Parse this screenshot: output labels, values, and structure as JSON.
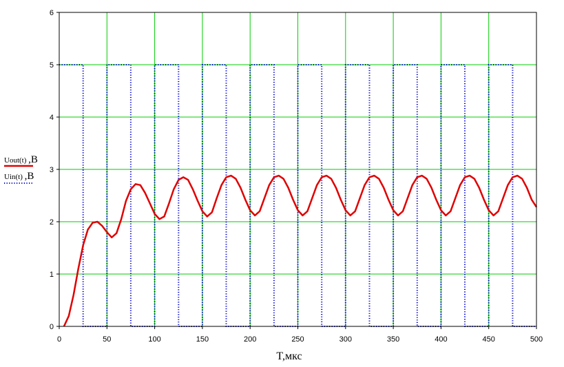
{
  "chart_data": {
    "type": "line",
    "xlabel": "T,мкс",
    "xlim": [
      0,
      500
    ],
    "ylim": [
      0,
      6
    ],
    "x_ticks": [
      0,
      50,
      100,
      150,
      200,
      250,
      300,
      350,
      400,
      450,
      500
    ],
    "x_tick_labels": [
      "0",
      "50",
      "100",
      "150",
      "200",
      "250",
      "300",
      "350",
      "400",
      "450",
      "500"
    ],
    "y_ticks": [
      0,
      1,
      2,
      3,
      4,
      5,
      6
    ],
    "y_tick_labels": [
      "0",
      "1",
      "2",
      "3",
      "4",
      "5",
      "6"
    ],
    "grid": true,
    "legend_position": "left",
    "series": [
      {
        "name": "Uout(t)",
        "label": "Uout(t)",
        "unit": ",B",
        "color": "#e00000",
        "style": "solid",
        "x": [
          5,
          10,
          15,
          20,
          25,
          30,
          35,
          40,
          45,
          50,
          55,
          60,
          65,
          70,
          75,
          80,
          85,
          90,
          95,
          100,
          105,
          110,
          115,
          120,
          125,
          130,
          135,
          140,
          145,
          150,
          155,
          160,
          165,
          170,
          175,
          180,
          185,
          190,
          195,
          200,
          205,
          210,
          215,
          220,
          225,
          230,
          235,
          240,
          245,
          250,
          255,
          260,
          265,
          270,
          275,
          280,
          285,
          290,
          295,
          300,
          305,
          310,
          315,
          320,
          325,
          330,
          335,
          340,
          345,
          350,
          355,
          360,
          365,
          370,
          375,
          380,
          385,
          390,
          395,
          400,
          405,
          410,
          415,
          420,
          425,
          430,
          435,
          440,
          445,
          450,
          455,
          460,
          465,
          470,
          475,
          480,
          485,
          490,
          495,
          500
        ],
        "y": [
          0.0,
          0.2,
          0.6,
          1.1,
          1.55,
          1.85,
          1.98,
          2.0,
          1.92,
          1.8,
          1.7,
          1.78,
          2.05,
          2.4,
          2.62,
          2.72,
          2.7,
          2.55,
          2.35,
          2.15,
          2.05,
          2.1,
          2.35,
          2.62,
          2.8,
          2.85,
          2.8,
          2.62,
          2.4,
          2.2,
          2.1,
          2.18,
          2.45,
          2.7,
          2.85,
          2.88,
          2.82,
          2.65,
          2.42,
          2.22,
          2.12,
          2.2,
          2.45,
          2.7,
          2.85,
          2.88,
          2.82,
          2.65,
          2.42,
          2.22,
          2.12,
          2.2,
          2.45,
          2.7,
          2.85,
          2.88,
          2.82,
          2.65,
          2.42,
          2.22,
          2.12,
          2.2,
          2.45,
          2.7,
          2.85,
          2.88,
          2.82,
          2.65,
          2.42,
          2.22,
          2.12,
          2.2,
          2.45,
          2.7,
          2.85,
          2.88,
          2.82,
          2.65,
          2.42,
          2.22,
          2.12,
          2.2,
          2.45,
          2.7,
          2.85,
          2.88,
          2.82,
          2.65,
          2.42,
          2.22,
          2.12,
          2.2,
          2.45,
          2.7,
          2.85,
          2.88,
          2.82,
          2.65,
          2.42,
          2.28
        ]
      },
      {
        "name": "Uin(t)",
        "label": "Uin(t)",
        "unit": ",B",
        "color": "#0000cc",
        "style": "dotted",
        "x": [
          0,
          25,
          25,
          50,
          50,
          75,
          75,
          100,
          100,
          125,
          125,
          150,
          150,
          175,
          175,
          200,
          200,
          225,
          225,
          250,
          250,
          275,
          275,
          300,
          300,
          325,
          325,
          350,
          350,
          375,
          375,
          400,
          400,
          425,
          425,
          450,
          450,
          475,
          475,
          500
        ],
        "y": [
          5,
          5,
          0,
          0,
          5,
          5,
          0,
          0,
          5,
          5,
          0,
          0,
          5,
          5,
          0,
          0,
          5,
          5,
          0,
          0,
          5,
          5,
          0,
          0,
          5,
          5,
          0,
          0,
          5,
          5,
          0,
          0,
          5,
          5,
          0,
          0,
          5,
          5,
          0,
          0
        ]
      }
    ]
  }
}
